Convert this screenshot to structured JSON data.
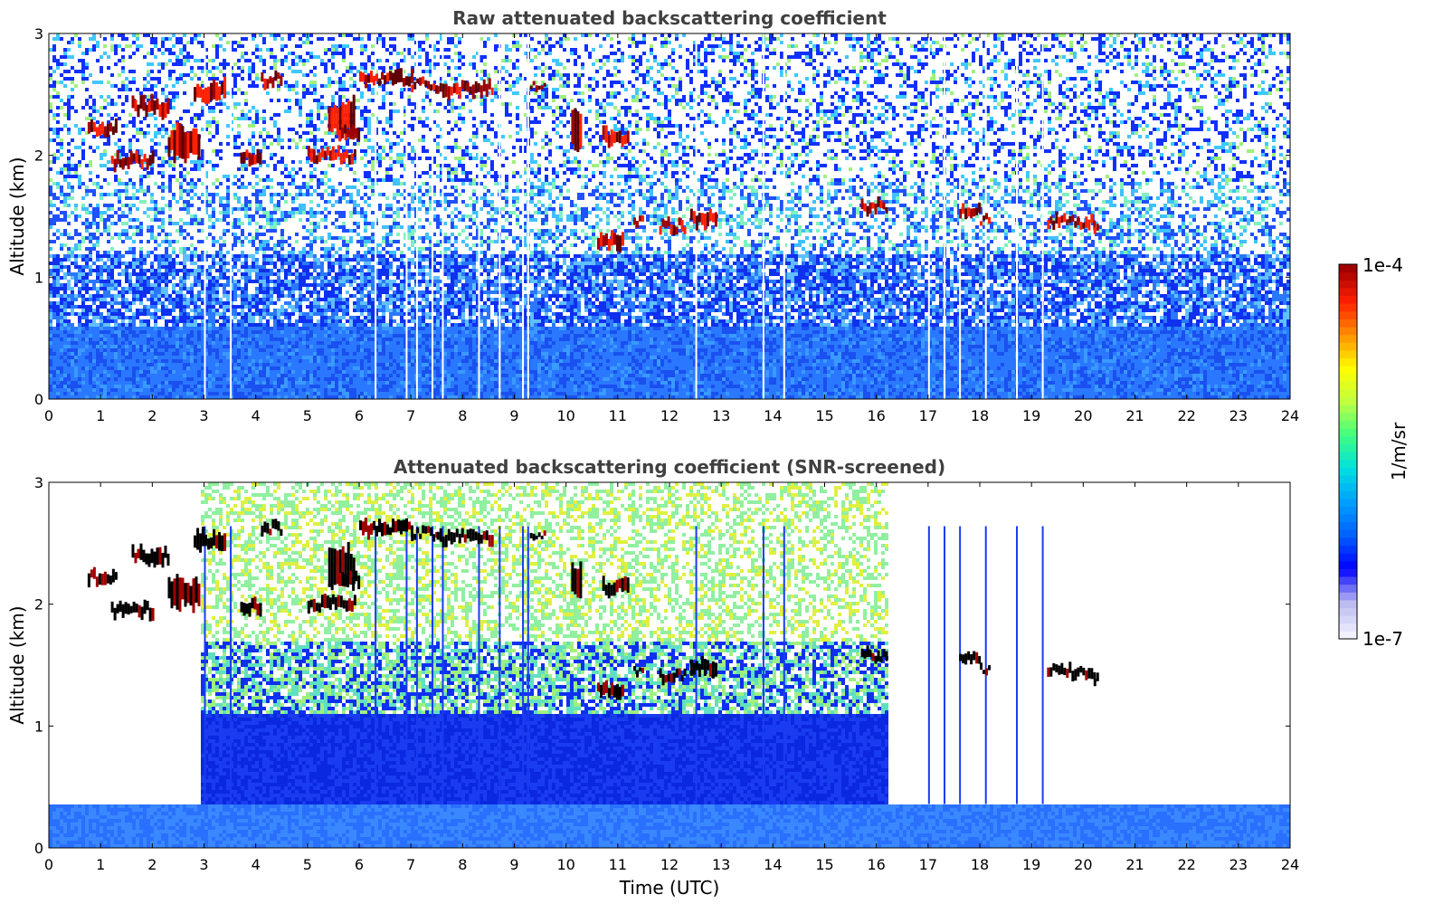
{
  "chart_data": [
    {
      "type": "heatmap",
      "title": "Raw attenuated backscattering coefficient",
      "xlabel": "",
      "ylabel": "Altitude (km)",
      "xlim": [
        0,
        24
      ],
      "ylim": [
        0,
        3
      ],
      "xticks": [
        "0",
        "1",
        "2",
        "3",
        "4",
        "5",
        "6",
        "7",
        "8",
        "9",
        "10",
        "11",
        "12",
        "13",
        "14",
        "15",
        "16",
        "17",
        "18",
        "19",
        "20",
        "21",
        "22",
        "23",
        "24"
      ],
      "yticks": [
        "0",
        "1",
        "2",
        "3"
      ],
      "screened": false
    },
    {
      "type": "heatmap",
      "title": "Attenuated backscattering coefficient (SNR-screened)",
      "xlabel": "Time (UTC)",
      "ylabel": "Altitude (km)",
      "xlim": [
        0,
        24
      ],
      "ylim": [
        0,
        3
      ],
      "xticks": [
        "0",
        "1",
        "2",
        "3",
        "4",
        "5",
        "6",
        "7",
        "8",
        "9",
        "10",
        "11",
        "12",
        "13",
        "14",
        "15",
        "16",
        "17",
        "18",
        "19",
        "20",
        "21",
        "22",
        "23",
        "24"
      ],
      "yticks": [
        "0",
        "1",
        "2",
        "3"
      ],
      "screened": true
    }
  ],
  "colorbar": {
    "label": "1/m/sr",
    "max_label": "1e-4",
    "min_label": "1e-7",
    "colors": [
      "#f0f0ff",
      "#b8b8f0",
      "#0000ff",
      "#0060ff",
      "#00a0ff",
      "#00e0e0",
      "#40ff80",
      "#c0ff40",
      "#ffff00",
      "#ff9000",
      "#ff2000",
      "#a00000"
    ]
  }
}
